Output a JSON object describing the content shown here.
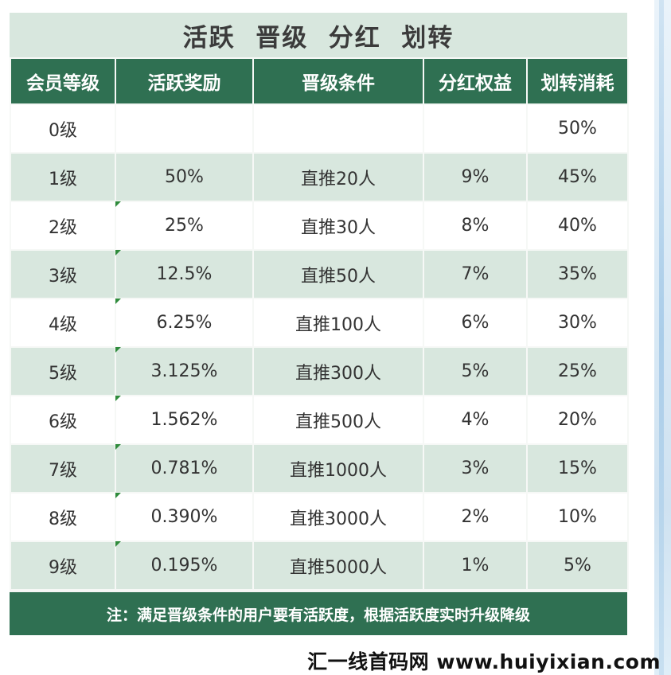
{
  "title": "活跃  晋级  分红  划转",
  "headers": [
    "会员等级",
    "活跃奖励",
    "晋级条件",
    "分红权益",
    "划转消耗"
  ],
  "rows": [
    {
      "level": "0级",
      "reward": "",
      "condition": "",
      "dividend": "",
      "transfer": "50%"
    },
    {
      "level": "1级",
      "reward": "50%",
      "condition": "直推20人",
      "dividend": "9%",
      "transfer": "45%"
    },
    {
      "level": "2级",
      "reward": "25%",
      "condition": "直推30人",
      "dividend": "8%",
      "transfer": "40%"
    },
    {
      "level": "3级",
      "reward": "12.5%",
      "condition": "直推50人",
      "dividend": "7%",
      "transfer": "35%"
    },
    {
      "level": "4级",
      "reward": "6.25%",
      "condition": "直推100人",
      "dividend": "6%",
      "transfer": "30%"
    },
    {
      "level": "5级",
      "reward": "3.125%",
      "condition": "直推300人",
      "dividend": "5%",
      "transfer": "25%"
    },
    {
      "level": "6级",
      "reward": "1.562%",
      "condition": "直推500人",
      "dividend": "4%",
      "transfer": "20%"
    },
    {
      "level": "7级",
      "reward": "0.781%",
      "condition": "直推1000人",
      "dividend": "3%",
      "transfer": "15%"
    },
    {
      "level": "8级",
      "reward": "0.390%",
      "condition": "直推3000人",
      "dividend": "2%",
      "transfer": "10%"
    },
    {
      "level": "9级",
      "reward": "0.195%",
      "condition": "直推5000人",
      "dividend": "1%",
      "transfer": "5%"
    }
  ],
  "note": "注：满足晋级条件的用户要有活跃度，根据活跃度实时升级降级",
  "watermark": "汇一线首码网 www.huiyixian.com",
  "colors": {
    "header_bg": "#2f7052",
    "title_bg": "#d8e7de",
    "row_alt_bg": "#d8e7de",
    "row_bg": "#ffffff",
    "corner_mark": "#2f8b3c"
  }
}
